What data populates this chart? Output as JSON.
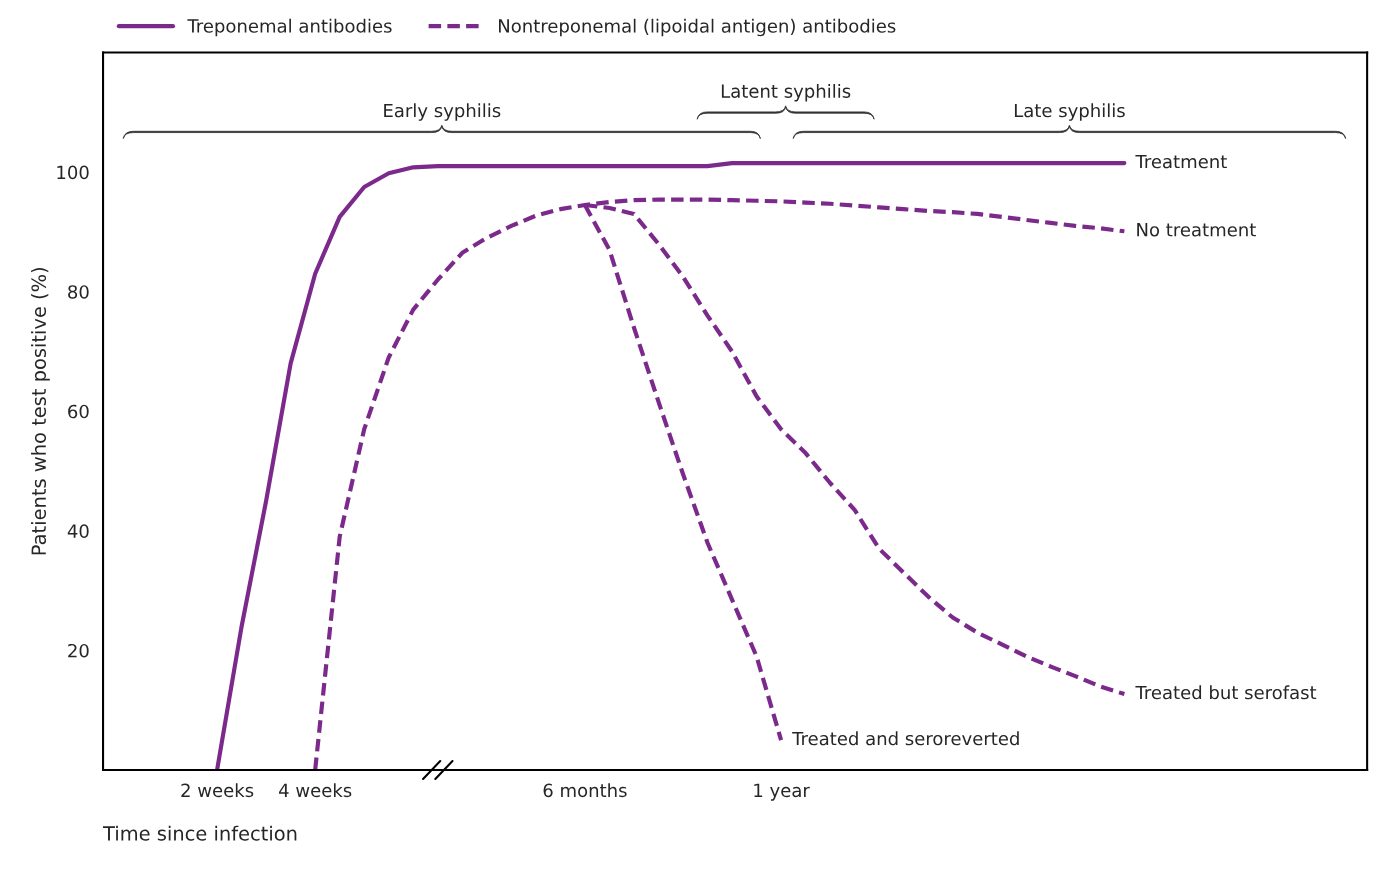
{
  "chart_data": {
    "type": "line",
    "xlabel": "Time since infection",
    "ylabel": "Patients who test positive (%)",
    "categories": [
      "2 weeks",
      null,
      null,
      null,
      "4 weeks",
      null,
      null,
      null,
      null,
      null,
      null,
      null,
      null,
      null,
      null,
      "6 months",
      null,
      null,
      null,
      null,
      null,
      null,
      null,
      "1 year",
      null,
      null,
      null,
      null,
      null,
      null,
      null,
      null,
      null,
      null,
      null,
      null,
      null,
      null
    ],
    "ylim": [
      0,
      120
    ],
    "yticks": [
      20,
      40,
      60,
      80,
      100
    ],
    "grid": false,
    "legend": "top",
    "marker": "none",
    "series": [
      {
        "name": "Treponemal antibodies",
        "color": "#7b2a8c",
        "line_style": "solid",
        "values": [
          0,
          24,
          45,
          68,
          83,
          92.5,
          97.5,
          99.8,
          100.8,
          101,
          101,
          101,
          101,
          101,
          101,
          101,
          101,
          101,
          101,
          101,
          101,
          101.5,
          101.5,
          101.5,
          101.5,
          101.5,
          101.5,
          101.5,
          101.5,
          101.5,
          101.5,
          101.5,
          101.5,
          101.5,
          101.5,
          101.5,
          101.5,
          101.5
        ]
      },
      {
        "name": "Nontreponemal (lipoidal antigen) antibodies",
        "color": "#7b2a8c",
        "line_style": "dashed",
        "values": [
          null,
          null,
          null,
          null,
          0,
          39,
          57,
          69,
          77,
          82,
          86.5,
          89,
          91,
          92.7,
          93.8,
          94.5,
          95,
          95.3,
          95.4,
          95.4,
          95.4,
          95.3,
          95.2,
          95.1,
          94.9,
          94.7,
          94.4,
          94.1,
          93.8,
          93.5,
          93.3,
          93.0,
          92.5,
          92.0,
          91.5,
          91.0,
          90.6,
          90.1
        ]
      },
      {
        "color": "#7b2a8c",
        "line_style": "dashed",
        "values": [
          null,
          null,
          null,
          null,
          null,
          null,
          null,
          null,
          null,
          null,
          null,
          null,
          null,
          null,
          null,
          94.5,
          87,
          74,
          61.6,
          49.5,
          38,
          28.5,
          19,
          5,
          null,
          null,
          null,
          null,
          null,
          null,
          null,
          null,
          null,
          null,
          null,
          null,
          null,
          null
        ]
      },
      {
        "color": "#7b2a8c",
        "line_style": "dashed",
        "values": [
          null,
          null,
          null,
          null,
          null,
          null,
          null,
          null,
          null,
          null,
          null,
          null,
          null,
          null,
          null,
          94.5,
          94,
          93,
          88,
          82.5,
          76,
          70,
          62.5,
          57,
          53,
          48,
          43.5,
          37,
          33,
          29,
          25.5,
          23,
          21,
          19,
          17.3,
          15.7,
          14,
          12.7
        ]
      }
    ],
    "annotations": [
      "Treatment",
      "No treatment",
      "Treated and seroreverted",
      "Treated but serofast",
      "Early syphilis",
      "Latent syphilis",
      "Late syphilis"
    ]
  }
}
